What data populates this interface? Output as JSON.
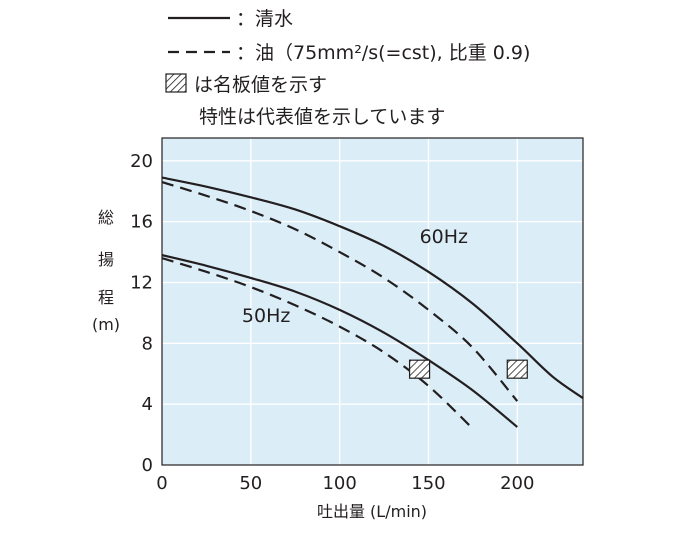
{
  "chart_data": {
    "type": "line",
    "xlabel": "吐出量 (L/min)",
    "ylabel_chars": [
      "総",
      "揚",
      "程",
      "(m)"
    ],
    "xlim": [
      0,
      237
    ],
    "ylim": [
      0,
      21.5
    ],
    "xticks": [
      0,
      50,
      100,
      150,
      200
    ],
    "yticks": [
      0,
      4,
      8,
      12,
      16,
      20
    ],
    "grid": true,
    "background_color": "#dbeef8",
    "legend": {
      "placement": "top-left",
      "entries": [
        {
          "style": "solid",
          "label": "：清水"
        },
        {
          "style": "dashed",
          "label": "：油（75mm²/s(=cst), 比重 0.9)"
        },
        {
          "style": "hatch",
          "label": "は名板値を示す"
        }
      ],
      "note": "特性は代表値を示しています"
    },
    "series": [
      {
        "style": "solid",
        "freq": "60Hz",
        "points": [
          [
            0,
            18.9
          ],
          [
            25,
            18.3
          ],
          [
            50,
            17.6
          ],
          [
            75,
            16.8
          ],
          [
            100,
            15.7
          ],
          [
            125,
            14.4
          ],
          [
            150,
            12.7
          ],
          [
            175,
            10.6
          ],
          [
            200,
            8.0
          ],
          [
            220,
            5.8
          ],
          [
            237,
            4.4
          ]
        ]
      },
      {
        "style": "dashed",
        "freq": "60Hz",
        "points": [
          [
            0,
            18.6
          ],
          [
            25,
            17.7
          ],
          [
            50,
            16.7
          ],
          [
            75,
            15.5
          ],
          [
            100,
            14.0
          ],
          [
            125,
            12.3
          ],
          [
            150,
            10.2
          ],
          [
            175,
            7.7
          ],
          [
            200,
            4.2
          ]
        ]
      },
      {
        "style": "solid",
        "freq": "50Hz",
        "points": [
          [
            0,
            13.8
          ],
          [
            25,
            13.1
          ],
          [
            50,
            12.3
          ],
          [
            75,
            11.4
          ],
          [
            100,
            10.2
          ],
          [
            125,
            8.7
          ],
          [
            150,
            6.9
          ],
          [
            175,
            4.9
          ],
          [
            200,
            2.5
          ]
        ]
      },
      {
        "style": "dashed",
        "freq": "50Hz",
        "points": [
          [
            0,
            13.6
          ],
          [
            25,
            12.7
          ],
          [
            50,
            11.7
          ],
          [
            75,
            10.5
          ],
          [
            100,
            9.1
          ],
          [
            125,
            7.4
          ],
          [
            150,
            5.2
          ],
          [
            174,
            2.5
          ]
        ]
      }
    ],
    "curve_labels": [
      {
        "text": "60Hz",
        "x": 145,
        "y": 14.6
      },
      {
        "text": "50Hz",
        "x": 45,
        "y": 9.4
      }
    ],
    "rated_points": [
      {
        "freq": "50Hz",
        "x": 145,
        "y": 6.3
      },
      {
        "freq": "60Hz",
        "x": 200,
        "y": 6.3
      }
    ]
  }
}
